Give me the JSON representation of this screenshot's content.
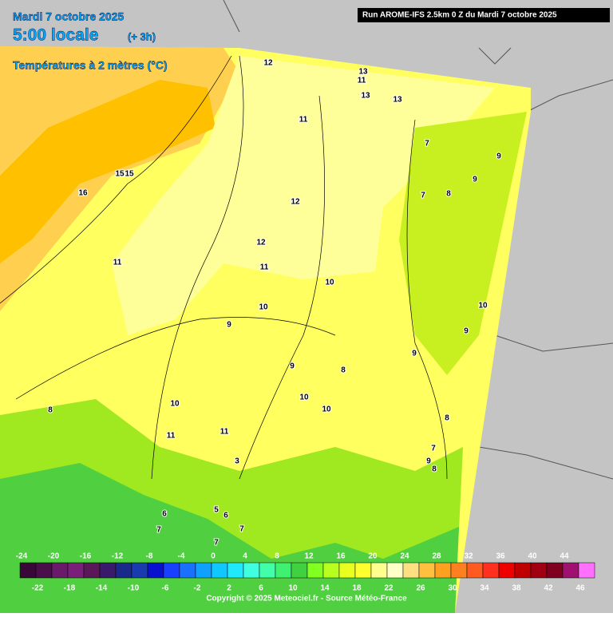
{
  "header": {
    "date": "Mardi 7 octobre 2025",
    "time": "5:00 locale",
    "offset": "(+ 3h)",
    "parameter": "Températures à 2 mètres (°C)",
    "run": "Run AROME-IFS 2.5km 0 Z du Mardi 7 octobre 2025"
  },
  "contour_labels": [
    12,
    11,
    13,
    13,
    13,
    11,
    7,
    9,
    7,
    8,
    9,
    15,
    15,
    16,
    12,
    11,
    12,
    11,
    10,
    10,
    10,
    9,
    9,
    9,
    8,
    9,
    10,
    10,
    8,
    10,
    11,
    11,
    8,
    9,
    7,
    8,
    3,
    6,
    5,
    6,
    7,
    7,
    7
  ],
  "scale": {
    "top_labels": [
      -24,
      -20,
      -16,
      -12,
      -8,
      -4,
      0,
      4,
      8,
      12,
      16,
      20,
      24,
      28,
      32,
      36,
      40,
      44
    ],
    "bottom_labels": [
      -22,
      -18,
      -14,
      -10,
      -6,
      -2,
      2,
      6,
      10,
      14,
      18,
      22,
      26,
      30,
      34,
      38,
      42,
      46
    ],
    "colors": [
      "#3a0838",
      "#4a0e4a",
      "#6a1a6a",
      "#7a207a",
      "#5a1858",
      "#3a1a6a",
      "#1a2a8a",
      "#1a3ab0",
      "#0a10d0",
      "#1a40ff",
      "#1a70ff",
      "#10a0ff",
      "#10c8ff",
      "#20e8ff",
      "#40ffe0",
      "#40ffa8",
      "#40f070",
      "#40d040",
      "#80ff20",
      "#b8ff20",
      "#e8ff20",
      "#ffff30",
      "#ffff90",
      "#ffffc8",
      "#ffe080",
      "#ffc040",
      "#ffa020",
      "#ff8020",
      "#ff5a20",
      "#ff3020",
      "#ee0000",
      "#c00000",
      "#a00010",
      "#800020",
      "#a01070",
      "#ff70ff"
    ]
  },
  "copyright": "Copyright © 2025 Meteociel.fr - Source Météo-France"
}
